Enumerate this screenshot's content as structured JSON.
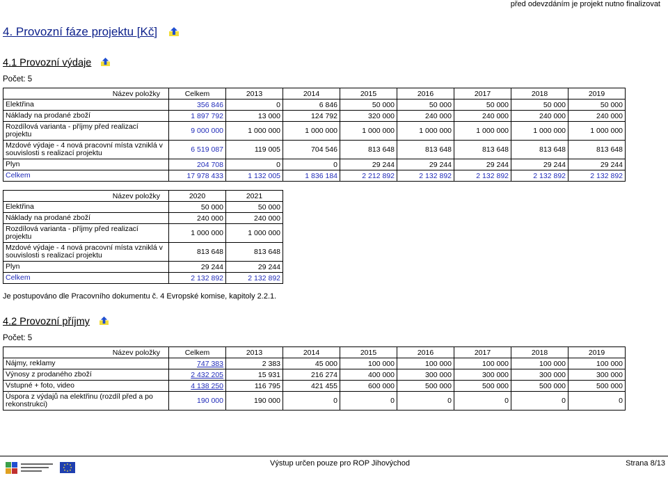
{
  "header_note": "před odevzdáním je projekt nutno finalizovat",
  "section4": {
    "title": "4. Provozní fáze projektu [Kč]"
  },
  "s41": {
    "title": "4.1 Provozní výdaje",
    "count": "Počet: 5",
    "t1": {
      "headers": [
        "Název položky",
        "Celkem",
        "2013",
        "2014",
        "2015",
        "2016",
        "2017",
        "2018",
        "2019"
      ],
      "rows": [
        {
          "label": "Elektřina",
          "cells": [
            "356 846",
            "0",
            "6 846",
            "50 000",
            "50 000",
            "50 000",
            "50 000",
            "50 000"
          ]
        },
        {
          "label": "Náklady na prodané zboží",
          "cells": [
            "1 897 792",
            "13 000",
            "124 792",
            "320 000",
            "240 000",
            "240 000",
            "240 000",
            "240 000"
          ]
        },
        {
          "label": "Rozdílová varianta - příjmy před realizací projektu",
          "cells": [
            "9 000 000",
            "1 000 000",
            "1 000 000",
            "1 000 000",
            "1 000 000",
            "1 000 000",
            "1 000 000",
            "1 000 000"
          ]
        },
        {
          "label": "Mzdové výdaje - 4 nová pracovní místa vzniklá v souvislosti s realizací projektu",
          "cells": [
            "6 519 087",
            "119 005",
            "704 546",
            "813 648",
            "813 648",
            "813 648",
            "813 648",
            "813 648"
          ]
        },
        {
          "label": "Plyn",
          "cells": [
            "204 708",
            "0",
            "0",
            "29 244",
            "29 244",
            "29 244",
            "29 244",
            "29 244"
          ]
        },
        {
          "label": "Celkem",
          "cells": [
            "17 978 433",
            "1 132 005",
            "1 836 184",
            "2 212 892",
            "2 132 892",
            "2 132 892",
            "2 132 892",
            "2 132 892"
          ]
        }
      ]
    },
    "t2": {
      "headers": [
        "Název položky",
        "2020",
        "2021"
      ],
      "rows": [
        {
          "label": "Elektřina",
          "cells": [
            "50 000",
            "50 000"
          ]
        },
        {
          "label": "Náklady na prodané zboží",
          "cells": [
            "240 000",
            "240 000"
          ]
        },
        {
          "label": "Rozdílová varianta - příjmy před realizací projektu",
          "cells": [
            "1 000 000",
            "1 000 000"
          ]
        },
        {
          "label": "Mzdové výdaje - 4 nová pracovní místa vzniklá v souvislosti s realizací projektu",
          "cells": [
            "813 648",
            "813 648"
          ]
        },
        {
          "label": "Plyn",
          "cells": [
            "29 244",
            "29 244"
          ]
        },
        {
          "label": "Celkem",
          "cells": [
            "2 132 892",
            "2 132 892"
          ]
        }
      ]
    },
    "note": "Je postupováno dle Pracovního dokumentu č. 4 Evropské komise, kapitoly 2.2.1."
  },
  "s42": {
    "title": "4.2 Provozní příjmy",
    "count": "Počet: 5",
    "t1": {
      "headers": [
        "Název položky",
        "Celkem",
        "2013",
        "2014",
        "2015",
        "2016",
        "2017",
        "2018",
        "2019"
      ],
      "rows": [
        {
          "label": "Nájmy, reklamy",
          "cells": [
            "747 383",
            "2 383",
            "45 000",
            "100 000",
            "100 000",
            "100 000",
            "100 000",
            "100 000"
          ]
        },
        {
          "label": "Výnosy z prodaného zboží",
          "cells": [
            "2 432 205",
            "15 931",
            "216 274",
            "400 000",
            "300 000",
            "300 000",
            "300 000",
            "300 000"
          ]
        },
        {
          "label": "Vstupné + foto, video",
          "cells": [
            "4 138 250",
            "116 795",
            "421 455",
            "600 000",
            "500 000",
            "500 000",
            "500 000",
            "500 000"
          ]
        },
        {
          "label": "Úspora z výdajů na elektřinu (rozdíl před a po rekonstrukci)",
          "cells": [
            "190 000",
            "190 000",
            "0",
            "0",
            "0",
            "0",
            "0",
            "0"
          ]
        }
      ]
    }
  },
  "footer": {
    "center": "Výstup určen pouze pro ROP Jihovýchod",
    "page": "Strana 8/13",
    "logo_text": "Regionální rada regionu soudržnosti Jihovýchod"
  },
  "colors": {
    "heading": "#0b1f8a",
    "value_blue": "#1f2ab8",
    "icon_arrow": "#1f4fd0",
    "icon_bg": "#f2dc3a"
  }
}
